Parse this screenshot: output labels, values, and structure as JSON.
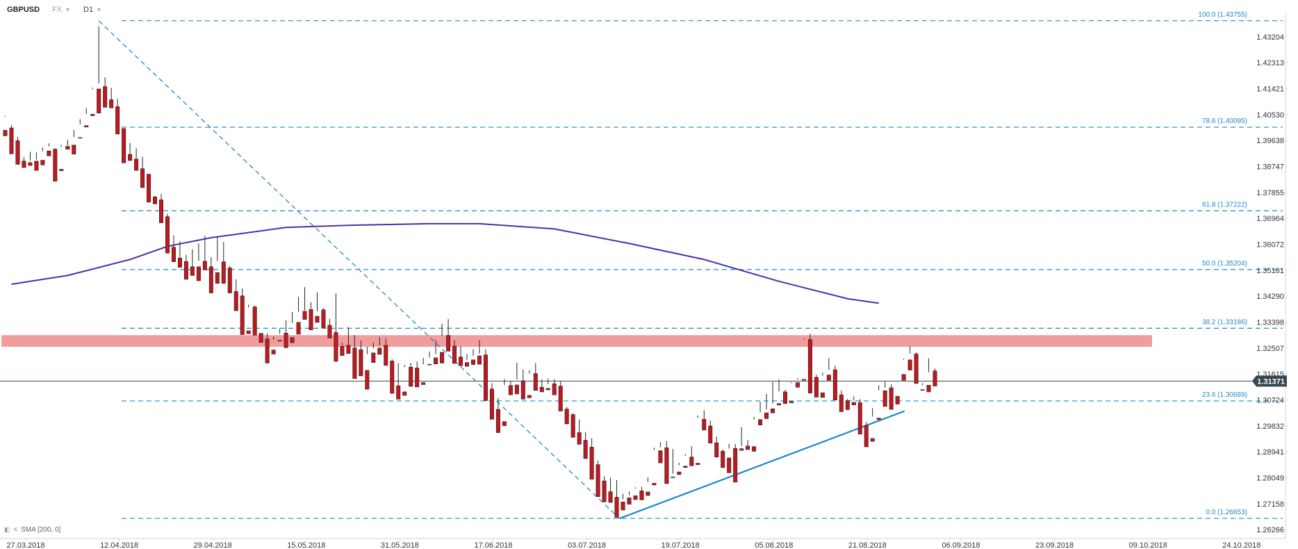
{
  "header": {
    "symbol": "GBPUSD",
    "market": "FX",
    "timeframe": "D1"
  },
  "indicator_label": "SMA [200, 0]",
  "colors": {
    "up": "#2e8b57",
    "down": "#c0181f",
    "sma": "#4b2fa8",
    "fib": "#1e88c8",
    "trend": "#1e88c8",
    "resistance": "#f08c8c",
    "price_line": "#37474f"
  },
  "chart_data": {
    "type": "candlestick",
    "title": "",
    "ylim": [
      1.2627,
      1.4375
    ],
    "y_ticks": [
      "1.43204",
      "1.42313",
      "1.41421",
      "1.40530",
      "1.39638",
      "1.38747",
      "1.37855",
      "1.36964",
      "1.36072",
      "1.35181",
      "1.34290",
      "1.33398",
      "1.32507",
      "1.31615",
      "1.30724",
      "1.29832",
      "1.28941",
      "1.28049",
      "1.27158",
      "1.26266"
    ],
    "x_ticks": [
      "27.03.2018",
      "12.04.2018",
      "29.04.2018",
      "15.05.2018",
      "31.05.2018",
      "17.06.2018",
      "03.07.2018",
      "19.07.2018",
      "05.08.2018",
      "21.08.2018",
      "06.09.2018",
      "23.09.2018",
      "09.10.2018",
      "24.10.2018"
    ],
    "last_price": "1.31371",
    "fib_levels": [
      {
        "label": "100.0 (1.43755)",
        "value": 1.43755
      },
      {
        "label": "78.6 (1.40095)",
        "value": 1.40095
      },
      {
        "label": "61.8 (1.37222)",
        "value": 1.37222
      },
      {
        "label": "50.0 (1.35204)",
        "value": 1.35204
      },
      {
        "label": "38.2 (1.33186)",
        "value": 1.33186
      },
      {
        "label": "23.6 (1.30689)",
        "value": 1.30689
      },
      {
        "label": "0.0 (1.26653)",
        "value": 1.26653
      }
    ],
    "resistance_zone": [
      1.3255,
      1.3295
    ],
    "sma_200": [
      [
        1,
        1.347
      ],
      [
        10,
        1.35
      ],
      [
        20,
        1.3555
      ],
      [
        26,
        1.36
      ],
      [
        33,
        1.363
      ],
      [
        45,
        1.3665
      ],
      [
        56,
        1.3673
      ],
      [
        68,
        1.3678
      ],
      [
        76,
        1.3678
      ],
      [
        88,
        1.366
      ],
      [
        100,
        1.361
      ],
      [
        112,
        1.3555
      ],
      [
        124,
        1.348
      ],
      [
        135,
        1.342
      ],
      [
        140,
        1.3405
      ]
    ],
    "trendline": [
      [
        98,
        1.2665
      ],
      [
        143,
        1.3034
      ]
    ],
    "fib_drawing_line": [
      [
        15,
        1.4375
      ],
      [
        98,
        1.2665
      ]
    ],
    "candles": [
      [
        0,
        1.3999,
        1.4048,
        1.4045,
        1.398
      ],
      [
        1,
        1.4007,
        1.4017,
        1.394,
        1.3918
      ],
      [
        2,
        1.3963,
        1.3976,
        1.3902,
        1.3882
      ],
      [
        3,
        1.3893,
        1.3907,
        1.3884,
        1.3871
      ],
      [
        4,
        1.3888,
        1.3925,
        1.3894,
        1.3878
      ],
      [
        5,
        1.3893,
        1.3923,
        1.3898,
        1.3861
      ],
      [
        6,
        1.3896,
        1.394,
        1.3927,
        1.388
      ],
      [
        7,
        1.3928,
        1.3954,
        1.3944,
        1.3911
      ],
      [
        8,
        1.3934,
        1.3937,
        1.3867,
        1.3824
      ],
      [
        9,
        1.3865,
        1.3949,
        1.3942,
        1.386
      ],
      [
        10,
        1.3944,
        1.3966,
        1.3947,
        1.3934
      ],
      [
        11,
        1.3948,
        1.4,
        1.3975,
        1.3917
      ],
      [
        12,
        1.3974,
        1.4037,
        1.402,
        1.3974
      ],
      [
        13,
        1.4015,
        1.4075,
        1.4055,
        1.401
      ],
      [
        14,
        1.4054,
        1.4145,
        1.414,
        1.4049
      ],
      [
        15,
        1.4141,
        1.4356,
        1.416,
        1.4058
      ],
      [
        16,
        1.4149,
        1.4181,
        1.4103,
        1.4078
      ],
      [
        17,
        1.4104,
        1.4145,
        1.4087,
        1.4076
      ],
      [
        18,
        1.408,
        1.4107,
        1.4005,
        1.3986
      ],
      [
        19,
        1.4005,
        1.4005,
        1.393,
        1.3887
      ],
      [
        20,
        1.3916,
        1.3955,
        1.391,
        1.3895
      ],
      [
        21,
        1.39,
        1.3937,
        1.3869,
        1.3861
      ],
      [
        22,
        1.3867,
        1.3908,
        1.3847,
        1.3802
      ],
      [
        23,
        1.3848,
        1.3849,
        1.377,
        1.3752
      ],
      [
        24,
        1.377,
        1.3774,
        1.3765,
        1.3746
      ],
      [
        25,
        1.376,
        1.378,
        1.37,
        1.3681
      ],
      [
        26,
        1.3702,
        1.3712,
        1.3595,
        1.3577
      ],
      [
        27,
        1.3597,
        1.3638,
        1.356,
        1.3547
      ],
      [
        28,
        1.356,
        1.3618,
        1.3544,
        1.3528
      ],
      [
        29,
        1.3548,
        1.357,
        1.352,
        1.3487
      ],
      [
        30,
        1.353,
        1.359,
        1.3526,
        1.35
      ],
      [
        31,
        1.353,
        1.361,
        1.355,
        1.3482
      ],
      [
        32,
        1.3549,
        1.3637,
        1.3533,
        1.3519
      ],
      [
        33,
        1.353,
        1.3563,
        1.351,
        1.344
      ],
      [
        34,
        1.351,
        1.3633,
        1.355,
        1.3473
      ],
      [
        35,
        1.3547,
        1.3615,
        1.3527,
        1.3473
      ],
      [
        36,
        1.3526,
        1.3533,
        1.3445,
        1.344
      ],
      [
        37,
        1.3445,
        1.3487,
        1.3432,
        1.3379
      ],
      [
        38,
        1.343,
        1.3455,
        1.3307,
        1.3297
      ],
      [
        39,
        1.331,
        1.34,
        1.339,
        1.33
      ],
      [
        40,
        1.3392,
        1.3397,
        1.3302,
        1.3295
      ],
      [
        41,
        1.3301,
        1.33,
        1.328,
        1.327
      ],
      [
        42,
        1.3282,
        1.3302,
        1.3245,
        1.3199
      ],
      [
        43,
        1.3244,
        1.329,
        1.328,
        1.323
      ],
      [
        44,
        1.3277,
        1.3318,
        1.33,
        1.3275
      ],
      [
        45,
        1.3302,
        1.3346,
        1.3284,
        1.3252
      ],
      [
        46,
        1.3287,
        1.3375,
        1.3337,
        1.3269
      ],
      [
        47,
        1.3339,
        1.3426,
        1.3375,
        1.3298
      ],
      [
        48,
        1.3377,
        1.346,
        1.338,
        1.3349
      ],
      [
        49,
        1.3383,
        1.3408,
        1.3358,
        1.3313
      ],
      [
        50,
        1.336,
        1.3442,
        1.3377,
        1.3339
      ],
      [
        51,
        1.3382,
        1.3388,
        1.333,
        1.332
      ],
      [
        52,
        1.3329,
        1.3351,
        1.3297,
        1.3285
      ],
      [
        53,
        1.3304,
        1.3438,
        1.3255,
        1.3205
      ],
      [
        54,
        1.3257,
        1.327,
        1.326,
        1.3225
      ],
      [
        55,
        1.326,
        1.3322,
        1.3245,
        1.3232
      ],
      [
        56,
        1.3251,
        1.3295,
        1.3244,
        1.3146
      ],
      [
        57,
        1.3245,
        1.3277,
        1.317,
        1.3155
      ],
      [
        58,
        1.3174,
        1.3255,
        1.323,
        1.3109
      ],
      [
        59,
        1.3234,
        1.327,
        1.3249,
        1.3201
      ],
      [
        60,
        1.3251,
        1.3288,
        1.326,
        1.3229
      ],
      [
        61,
        1.326,
        1.3283,
        1.321,
        1.3191
      ],
      [
        62,
        1.3206,
        1.3212,
        1.3123,
        1.3095
      ],
      [
        63,
        1.3121,
        1.3199,
        1.3093,
        1.3075
      ],
      [
        64,
        1.31,
        1.3193,
        1.3185,
        1.3088
      ],
      [
        65,
        1.3185,
        1.32,
        1.3181,
        1.3119
      ],
      [
        66,
        1.3182,
        1.3204,
        1.3133,
        1.3117
      ],
      [
        67,
        1.3132,
        1.3217,
        1.3195,
        1.3125
      ],
      [
        68,
        1.3195,
        1.3239,
        1.3218,
        1.3195
      ],
      [
        69,
        1.3217,
        1.3278,
        1.323,
        1.3196
      ],
      [
        70,
        1.3236,
        1.3334,
        1.3291,
        1.3199
      ],
      [
        71,
        1.3294,
        1.335,
        1.3241,
        1.324
      ],
      [
        72,
        1.3257,
        1.3277,
        1.322,
        1.3198
      ],
      [
        73,
        1.322,
        1.3257,
        1.3198,
        1.319
      ],
      [
        74,
        1.3201,
        1.323,
        1.321,
        1.3188
      ],
      [
        75,
        1.321,
        1.3247,
        1.3223,
        1.3194
      ],
      [
        76,
        1.3224,
        1.3278,
        1.3231,
        1.3195
      ],
      [
        77,
        1.3227,
        1.3247,
        1.311,
        1.307
      ],
      [
        78,
        1.311,
        1.313,
        1.304,
        1.3006
      ],
      [
        79,
        1.304,
        1.3079,
        1.2998,
        1.296
      ],
      [
        80,
        1.2998,
        1.3144,
        1.3124,
        1.2984
      ],
      [
        81,
        1.3122,
        1.3136,
        1.3123,
        1.309
      ],
      [
        82,
        1.3124,
        1.32,
        1.3143,
        1.3093
      ],
      [
        83,
        1.3138,
        1.3177,
        1.3088,
        1.3075
      ],
      [
        84,
        1.3088,
        1.3174,
        1.3163,
        1.308
      ],
      [
        85,
        1.3163,
        1.3199,
        1.3117,
        1.3105
      ],
      [
        86,
        1.3116,
        1.3143,
        1.3114,
        1.31
      ],
      [
        87,
        1.3112,
        1.3146,
        1.3126,
        1.3107
      ],
      [
        88,
        1.3128,
        1.3143,
        1.3116,
        1.309
      ],
      [
        89,
        1.312,
        1.3136,
        1.3041,
        1.3034
      ],
      [
        90,
        1.3041,
        1.3048,
        1.3022,
        1.299
      ],
      [
        91,
        1.3022,
        1.3027,
        1.296,
        1.2944
      ],
      [
        92,
        1.296,
        1.3005,
        1.2934,
        1.292
      ],
      [
        93,
        1.2934,
        1.2962,
        1.2904,
        1.2871
      ],
      [
        94,
        1.291,
        1.2941,
        1.2848,
        1.28
      ],
      [
        95,
        1.285,
        1.2864,
        1.2795,
        1.274
      ],
      [
        96,
        1.2794,
        1.281,
        1.2757,
        1.2722
      ],
      [
        97,
        1.2757,
        1.2805,
        1.2738,
        1.272
      ],
      [
        98,
        1.2738,
        1.2797,
        1.272,
        1.2669
      ],
      [
        99,
        1.2722,
        1.275,
        1.2731,
        1.2694
      ],
      [
        100,
        1.2736,
        1.2758,
        1.2745,
        1.2714
      ],
      [
        101,
        1.2743,
        1.2772,
        1.2768,
        1.273
      ],
      [
        102,
        1.276,
        1.2774,
        1.2754,
        1.2729
      ],
      [
        103,
        1.2756,
        1.2806,
        1.279,
        1.2744
      ],
      [
        104,
        1.2786,
        1.2908,
        1.29,
        1.278
      ],
      [
        105,
        1.2898,
        1.2927,
        1.291,
        1.2856
      ],
      [
        106,
        1.2908,
        1.2931,
        1.2796,
        1.2785
      ],
      [
        107,
        1.2808,
        1.2904,
        1.2819,
        1.2808
      ],
      [
        108,
        1.2825,
        1.2856,
        1.2848,
        1.2816
      ],
      [
        109,
        1.2845,
        1.2886,
        1.288,
        1.284
      ],
      [
        110,
        1.2876,
        1.2913,
        1.2855,
        1.2846
      ],
      [
        111,
        1.2855,
        1.3019,
        1.3011,
        1.285
      ],
      [
        112,
        1.3006,
        1.3037,
        1.2986,
        1.2969
      ],
      [
        113,
        1.2983,
        1.3002,
        1.2945,
        1.2924
      ],
      [
        114,
        1.2925,
        1.2946,
        1.2896,
        1.2876
      ],
      [
        115,
        1.2896,
        1.2902,
        1.2872,
        1.284
      ],
      [
        116,
        1.2873,
        1.2922,
        1.2905,
        1.2822
      ],
      [
        117,
        1.2906,
        1.2921,
        1.2905,
        1.279
      ],
      [
        118,
        1.2905,
        1.2979,
        1.2914,
        1.2899
      ],
      [
        119,
        1.2914,
        1.2935,
        1.2914,
        1.2902
      ],
      [
        120,
        1.2912,
        1.3014,
        1.3005,
        1.2896
      ],
      [
        121,
        1.3005,
        1.3066,
        1.3029,
        1.2986
      ],
      [
        122,
        1.3028,
        1.3093,
        1.304,
        1.3008
      ],
      [
        123,
        1.3042,
        1.3134,
        1.306,
        1.3028
      ],
      [
        124,
        1.306,
        1.3143,
        1.3102,
        1.3055
      ],
      [
        125,
        1.31,
        1.3108,
        1.3062,
        1.306
      ],
      [
        126,
        1.3062,
        1.313,
        1.3134,
        1.3068
      ],
      [
        127,
        1.3132,
        1.3148,
        1.3142,
        1.3116
      ],
      [
        128,
        1.3143,
        1.3283,
        1.328,
        1.314
      ],
      [
        129,
        1.328,
        1.33,
        1.314,
        1.3096
      ],
      [
        130,
        1.315,
        1.3159,
        1.31,
        1.3082
      ],
      [
        131,
        1.3097,
        1.3166,
        1.3156,
        1.3081
      ],
      [
        132,
        1.3158,
        1.3216,
        1.3175,
        1.314
      ],
      [
        133,
        1.3176,
        1.319,
        1.3091,
        1.3072
      ],
      [
        134,
        1.309,
        1.3105,
        1.307,
        1.3032
      ],
      [
        135,
        1.307,
        1.3076,
        1.3062,
        1.3039
      ],
      [
        136,
        1.3064,
        1.3085,
        1.307,
        1.3055
      ],
      [
        137,
        1.3063,
        1.3075,
        1.2972,
        1.2955
      ],
      [
        138,
        1.2985,
        1.2996,
        1.2935,
        1.2911
      ],
      [
        139,
        1.294,
        1.3044,
        1.3015,
        1.293
      ],
      [
        140,
        1.301,
        1.3123,
        1.3106,
        1.3005
      ],
      [
        141,
        1.3104,
        1.3135,
        1.3114,
        1.305
      ],
      [
        142,
        1.3114,
        1.3126,
        1.3084,
        1.304
      ],
      [
        143,
        1.3085,
        1.3162,
        1.3161,
        1.3058
      ],
      [
        144,
        1.316,
        1.3214,
        1.321,
        1.314
      ],
      [
        145,
        1.321,
        1.3258,
        1.3232,
        1.3175
      ],
      [
        146,
        1.323,
        1.3236,
        1.3147,
        1.3129
      ],
      [
        147,
        1.3108,
        1.313,
        1.3123,
        1.3107
      ],
      [
        148,
        1.3123,
        1.3215,
        1.3168,
        1.31
      ],
      [
        149,
        1.3172,
        1.318,
        1.3137,
        1.312
      ]
    ]
  }
}
